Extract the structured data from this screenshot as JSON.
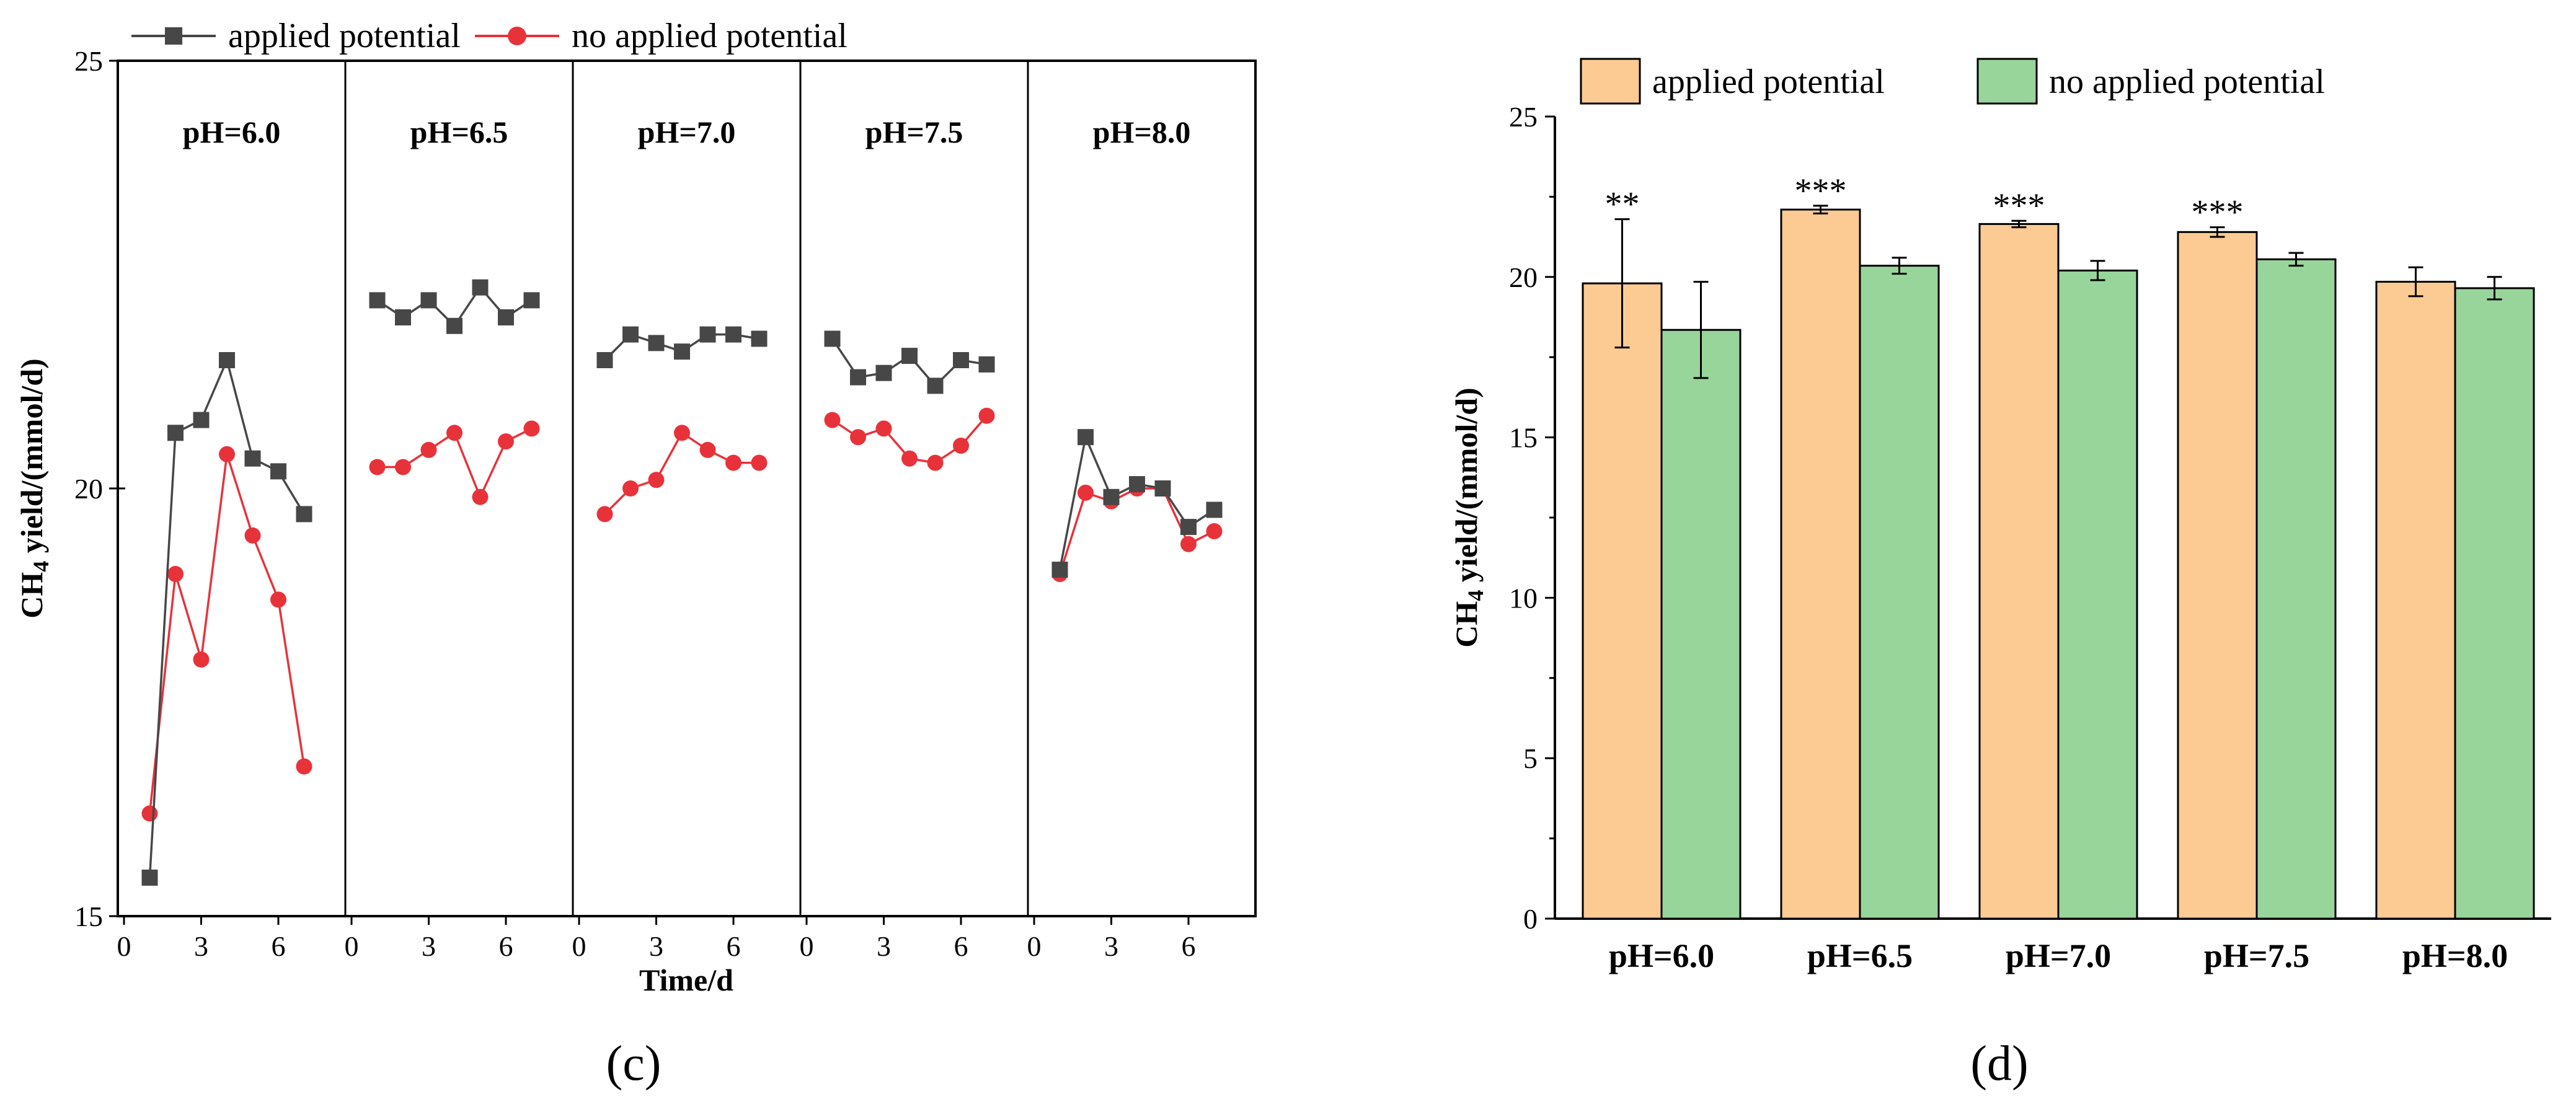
{
  "chart_data": [
    {
      "id": "c",
      "type": "line",
      "caption": "(c)",
      "ylabel_main": "CH",
      "ylabel_sub": "4",
      "ylabel_rest": " yield/(mmol/d)",
      "xlabel": "Time/d",
      "ylim": [
        15,
        25
      ],
      "yticks": [
        "15",
        "20",
        "25"
      ],
      "xticks": [
        "0",
        "3",
        "6"
      ],
      "series_names": [
        "applied potential",
        "no applied potential"
      ],
      "colors": {
        "applied": "#474747",
        "no": "#e8323a"
      },
      "groups": [
        {
          "title": "pH=6.0",
          "x": [
            1,
            2,
            3,
            4,
            5,
            6,
            7
          ],
          "applied": [
            15.45,
            20.65,
            20.8,
            21.5,
            20.35,
            20.2,
            19.7
          ],
          "no": [
            16.2,
            19.0,
            18.0,
            20.4,
            19.45,
            18.7,
            16.75
          ]
        },
        {
          "title": "pH=6.5",
          "x": [
            1,
            2,
            3,
            4,
            5,
            6,
            7
          ],
          "applied": [
            22.2,
            22.0,
            22.2,
            21.9,
            22.35,
            22.0,
            22.2
          ],
          "no": [
            20.25,
            20.25,
            20.45,
            20.65,
            19.9,
            20.55,
            20.7
          ]
        },
        {
          "title": "pH=7.0",
          "x": [
            1,
            2,
            3,
            4,
            5,
            6,
            7
          ],
          "applied": [
            21.5,
            21.8,
            21.7,
            21.6,
            21.8,
            21.8,
            21.75
          ],
          "no": [
            19.7,
            20.0,
            20.1,
            20.65,
            20.45,
            20.3,
            20.3
          ]
        },
        {
          "title": "pH=7.5",
          "x": [
            1,
            2,
            3,
            4,
            5,
            6,
            7
          ],
          "applied": [
            21.75,
            21.3,
            21.35,
            21.55,
            21.2,
            21.5,
            21.45
          ],
          "no": [
            20.8,
            20.6,
            20.7,
            20.35,
            20.3,
            20.5,
            20.85
          ]
        },
        {
          "title": "pH=8.0",
          "x": [
            1,
            2,
            3,
            4,
            5,
            6,
            7
          ],
          "applied": [
            19.05,
            20.6,
            19.9,
            20.05,
            20.0,
            19.55,
            19.75
          ],
          "no": [
            19.0,
            19.95,
            19.85,
            20.0,
            20.0,
            19.35,
            19.5
          ]
        }
      ]
    },
    {
      "id": "d",
      "type": "bar",
      "caption": "(d)",
      "ylabel_main": "CH",
      "ylabel_sub": "4",
      "ylabel_rest": " yield/(mmol/d)",
      "ylim": [
        0,
        25
      ],
      "yticks": [
        "0",
        "5",
        "10",
        "15",
        "20",
        "25"
      ],
      "categories": [
        "pH=6.0",
        "pH=6.5",
        "pH=7.0",
        "pH=7.5",
        "pH=8.0"
      ],
      "series": [
        {
          "name": "applied potential",
          "color": "#fbcb93",
          "values": [
            19.8,
            22.1,
            21.65,
            21.4,
            19.85
          ],
          "errors": [
            2.0,
            0.12,
            0.1,
            0.15,
            0.45
          ]
        },
        {
          "name": "no applied potential",
          "color": "#98d59a",
          "values": [
            18.35,
            20.35,
            20.2,
            20.55,
            19.65
          ],
          "errors": [
            1.5,
            0.25,
            0.3,
            0.2,
            0.35
          ]
        }
      ],
      "significance": [
        "**",
        "***",
        "***",
        "***",
        ""
      ]
    }
  ]
}
